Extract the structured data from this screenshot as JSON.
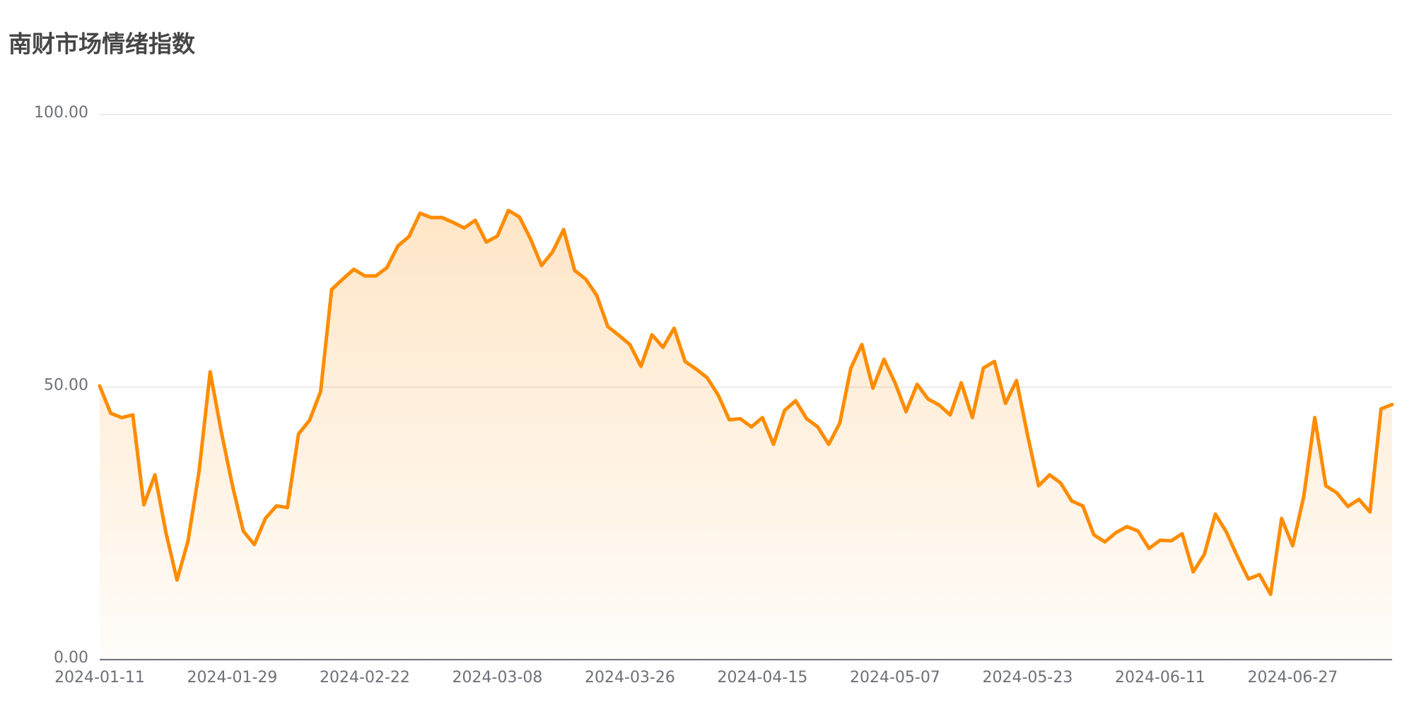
{
  "chart_data": {
    "type": "line",
    "title": "南财市场情绪指数",
    "categories": [
      "2024-01-11",
      null,
      null,
      null,
      null,
      null,
      null,
      null,
      null,
      null,
      null,
      null,
      "2024-01-29",
      null,
      null,
      null,
      null,
      null,
      null,
      null,
      null,
      null,
      null,
      null,
      "2024-02-22",
      null,
      null,
      null,
      null,
      null,
      null,
      null,
      null,
      null,
      null,
      null,
      "2024-03-08",
      null,
      null,
      null,
      null,
      null,
      null,
      null,
      null,
      null,
      null,
      null,
      "2024-03-26",
      null,
      null,
      null,
      null,
      null,
      null,
      null,
      null,
      null,
      null,
      null,
      "2024-04-15",
      null,
      null,
      null,
      null,
      null,
      null,
      null,
      null,
      null,
      null,
      null,
      "2024-05-07",
      null,
      null,
      null,
      null,
      null,
      null,
      null,
      null,
      null,
      null,
      null,
      "2024-05-23",
      null,
      null,
      null,
      null,
      null,
      null,
      null,
      null,
      null,
      null,
      null,
      "2024-06-11",
      null,
      null,
      null,
      null,
      null,
      null,
      null,
      null,
      null,
      null,
      null,
      "2024-06-27",
      null,
      null,
      null,
      null,
      null,
      null,
      null,
      null,
      null
    ],
    "values": [
      50.2,
      45.2,
      44.4,
      44.9,
      28.4,
      33.9,
      23.3,
      14.6,
      21.8,
      34.6,
      52.8,
      41.9,
      32.1,
      23.6,
      21.1,
      25.9,
      28.2,
      27.9,
      41.4,
      43.9,
      49.2,
      67.9,
      69.8,
      71.6,
      70.4,
      70.4,
      71.9,
      75.9,
      77.6,
      81.9,
      81.1,
      81.1,
      80.2,
      79.2,
      80.6,
      76.6,
      77.7,
      82.4,
      81.2,
      77.2,
      72.3,
      74.8,
      78.9,
      71.4,
      69.8,
      66.8,
      61.1,
      59.5,
      57.8,
      53.8,
      59.6,
      57.3,
      60.8,
      54.7,
      53.3,
      51.7,
      48.5,
      44.0,
      44.2,
      42.7,
      44.4,
      39.5,
      45.7,
      47.5,
      44.2,
      42.7,
      39.5,
      43.4,
      53.5,
      57.8,
      49.8,
      55.1,
      50.8,
      45.5,
      50.5,
      47.8,
      46.7,
      44.9,
      50.8,
      44.4,
      53.5,
      54.7,
      47.0,
      51.2,
      41.2,
      31.9,
      33.9,
      32.4,
      29.1,
      28.2,
      22.9,
      21.6,
      23.3,
      24.4,
      23.6,
      20.4,
      21.9,
      21.8,
      23.1,
      16.1,
      19.3,
      26.7,
      23.4,
      18.9,
      14.8,
      15.6,
      12.0,
      25.9,
      20.9,
      29.9,
      44.4,
      31.9,
      30.6,
      28.1,
      29.4,
      27.1,
      46.0,
      46.8
    ],
    "color": "#ff8c00",
    "ylim": [
      0,
      100
    ],
    "yticks": [
      {
        "value": 0,
        "label": "0.00"
      },
      {
        "value": 50,
        "label": "50.00"
      },
      {
        "value": 100,
        "label": "100.00"
      }
    ],
    "grid": true
  }
}
